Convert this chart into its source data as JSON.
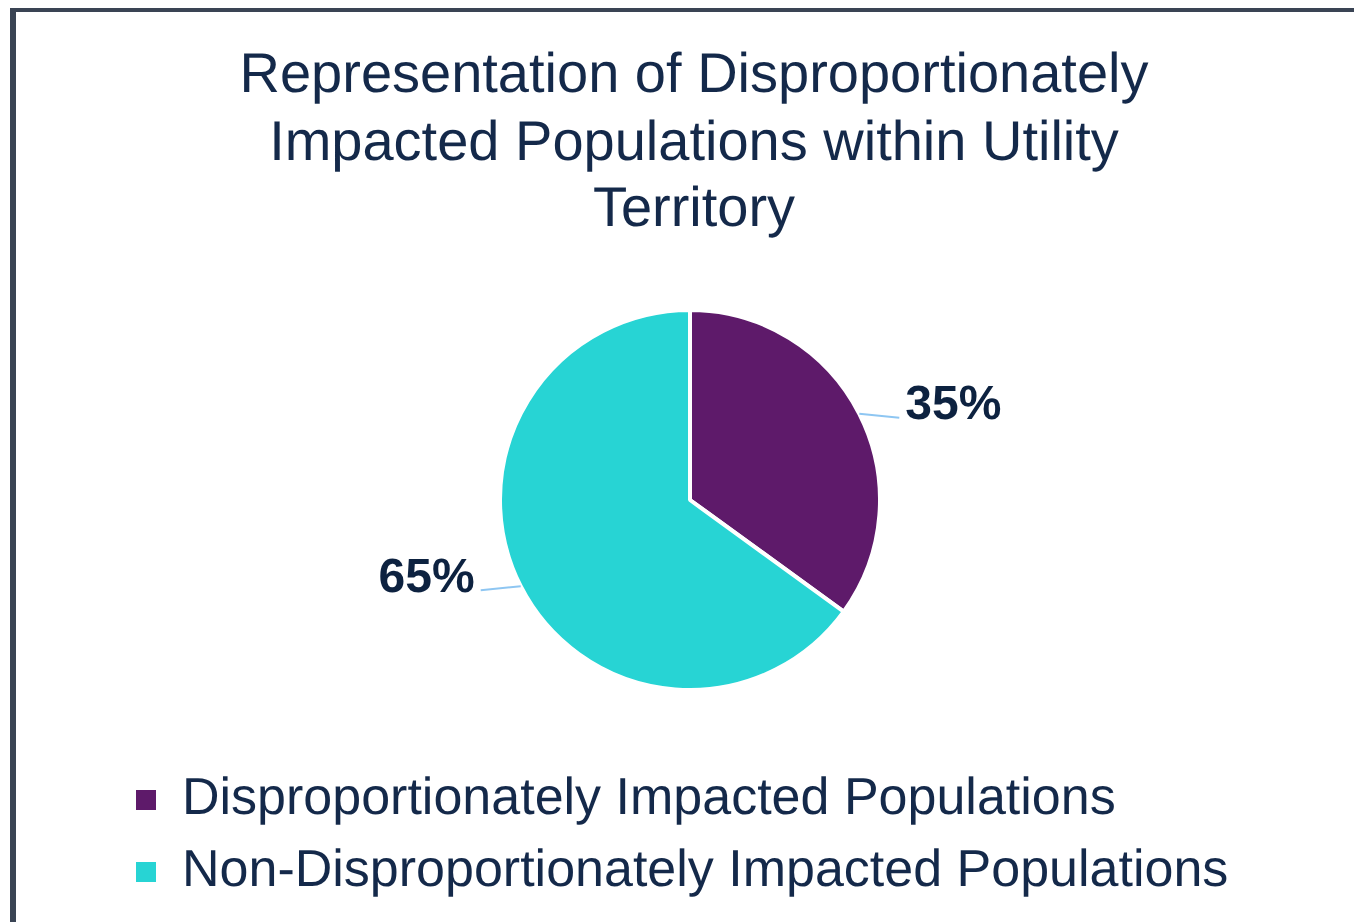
{
  "chart_data": {
    "type": "pie",
    "title": "Representation of Disproportionately Impacted Populations within Utility Territory",
    "categories": [
      "Disproportionately Impacted Populations",
      "Non-Disproportionately Impacted Populations"
    ],
    "values": [
      35,
      65
    ],
    "colors": [
      "#5e1a6a",
      "#27d4d4"
    ],
    "value_labels": [
      "35%",
      "65%"
    ],
    "legend": "bottom"
  }
}
